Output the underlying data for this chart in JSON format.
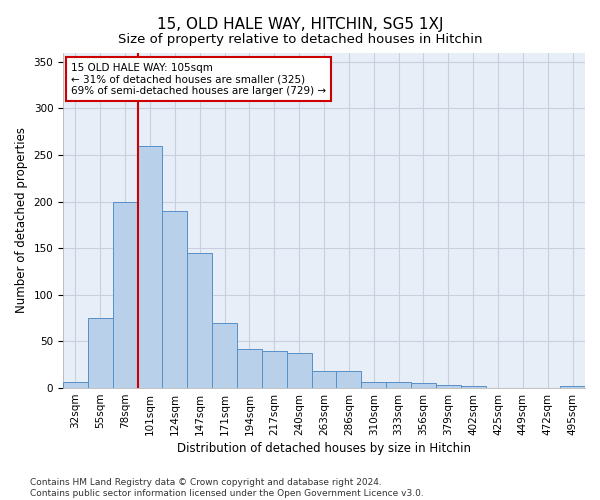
{
  "title": "15, OLD HALE WAY, HITCHIN, SG5 1XJ",
  "subtitle": "Size of property relative to detached houses in Hitchin",
  "xlabel": "Distribution of detached houses by size in Hitchin",
  "ylabel": "Number of detached properties",
  "categories": [
    "32sqm",
    "55sqm",
    "78sqm",
    "101sqm",
    "124sqm",
    "147sqm",
    "171sqm",
    "194sqm",
    "217sqm",
    "240sqm",
    "263sqm",
    "286sqm",
    "310sqm",
    "333sqm",
    "356sqm",
    "379sqm",
    "402sqm",
    "425sqm",
    "449sqm",
    "472sqm",
    "495sqm"
  ],
  "values": [
    6,
    75,
    200,
    260,
    190,
    145,
    70,
    42,
    40,
    38,
    18,
    18,
    6,
    6,
    5,
    3,
    2,
    0,
    0,
    0,
    2
  ],
  "bar_color": "#b8d0ea",
  "bar_edge_color": "#5590c8",
  "highlight_line_color": "#cc0000",
  "highlight_line_index": 3,
  "annotation_text": "15 OLD HALE WAY: 105sqm\n← 31% of detached houses are smaller (325)\n69% of semi-detached houses are larger (729) →",
  "annotation_box_color": "#ffffff",
  "annotation_box_edge": "#cc0000",
  "footer_line1": "Contains HM Land Registry data © Crown copyright and database right 2024.",
  "footer_line2": "Contains public sector information licensed under the Open Government Licence v3.0.",
  "ylim": [
    0,
    360
  ],
  "yticks": [
    0,
    50,
    100,
    150,
    200,
    250,
    300,
    350
  ],
  "background_color": "#e8eef8",
  "grid_color": "#c8d0df",
  "title_fontsize": 11,
  "subtitle_fontsize": 9.5,
  "axis_label_fontsize": 8.5,
  "tick_fontsize": 7.5,
  "annotation_fontsize": 7.5,
  "footer_fontsize": 6.5
}
